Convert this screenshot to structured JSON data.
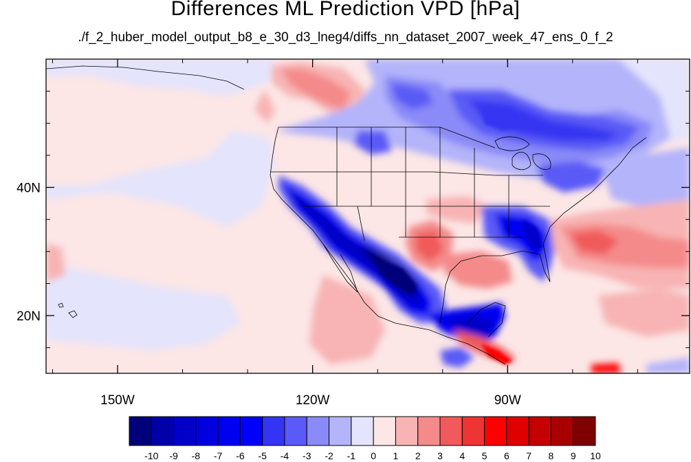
{
  "title": "Differences ML Prediction VPD [hPa]",
  "subtitle": "./f_2_huber_model_output_b8_e_30_d3_lneg4/diffs_nn_dataset_2007_week_47_ens_0_f_2",
  "map": {
    "lon_range": [
      -161,
      -62
    ],
    "lat_range": [
      11,
      60
    ],
    "lon_ticks": [
      {
        "value": -150,
        "label": "150W"
      },
      {
        "value": -120,
        "label": "120W"
      },
      {
        "value": -90,
        "label": "90W"
      }
    ],
    "lat_ticks": [
      {
        "value": 40,
        "label": "40N"
      },
      {
        "value": 20,
        "label": "20N"
      }
    ]
  },
  "colorbar": {
    "labels": [
      "-10",
      "-9",
      "-8",
      "-7",
      "-6",
      "-5",
      "-4",
      "-3",
      "-2",
      "-1",
      "0",
      "1",
      "2",
      "3",
      "4",
      "5",
      "6",
      "7",
      "8",
      "9",
      "10"
    ],
    "colors": [
      "#00007a",
      "#0000a8",
      "#0000c8",
      "#0000de",
      "#0000f0",
      "#0000ff",
      "#3434f2",
      "#5a5af6",
      "#8a8af8",
      "#b4b4fa",
      "#e4e4fc",
      "#fce6e6",
      "#f8b4b4",
      "#f48a8a",
      "#f05a5a",
      "#ee3434",
      "#ff0000",
      "#e00000",
      "#c40000",
      "#a80000",
      "#7e0000"
    ]
  }
}
